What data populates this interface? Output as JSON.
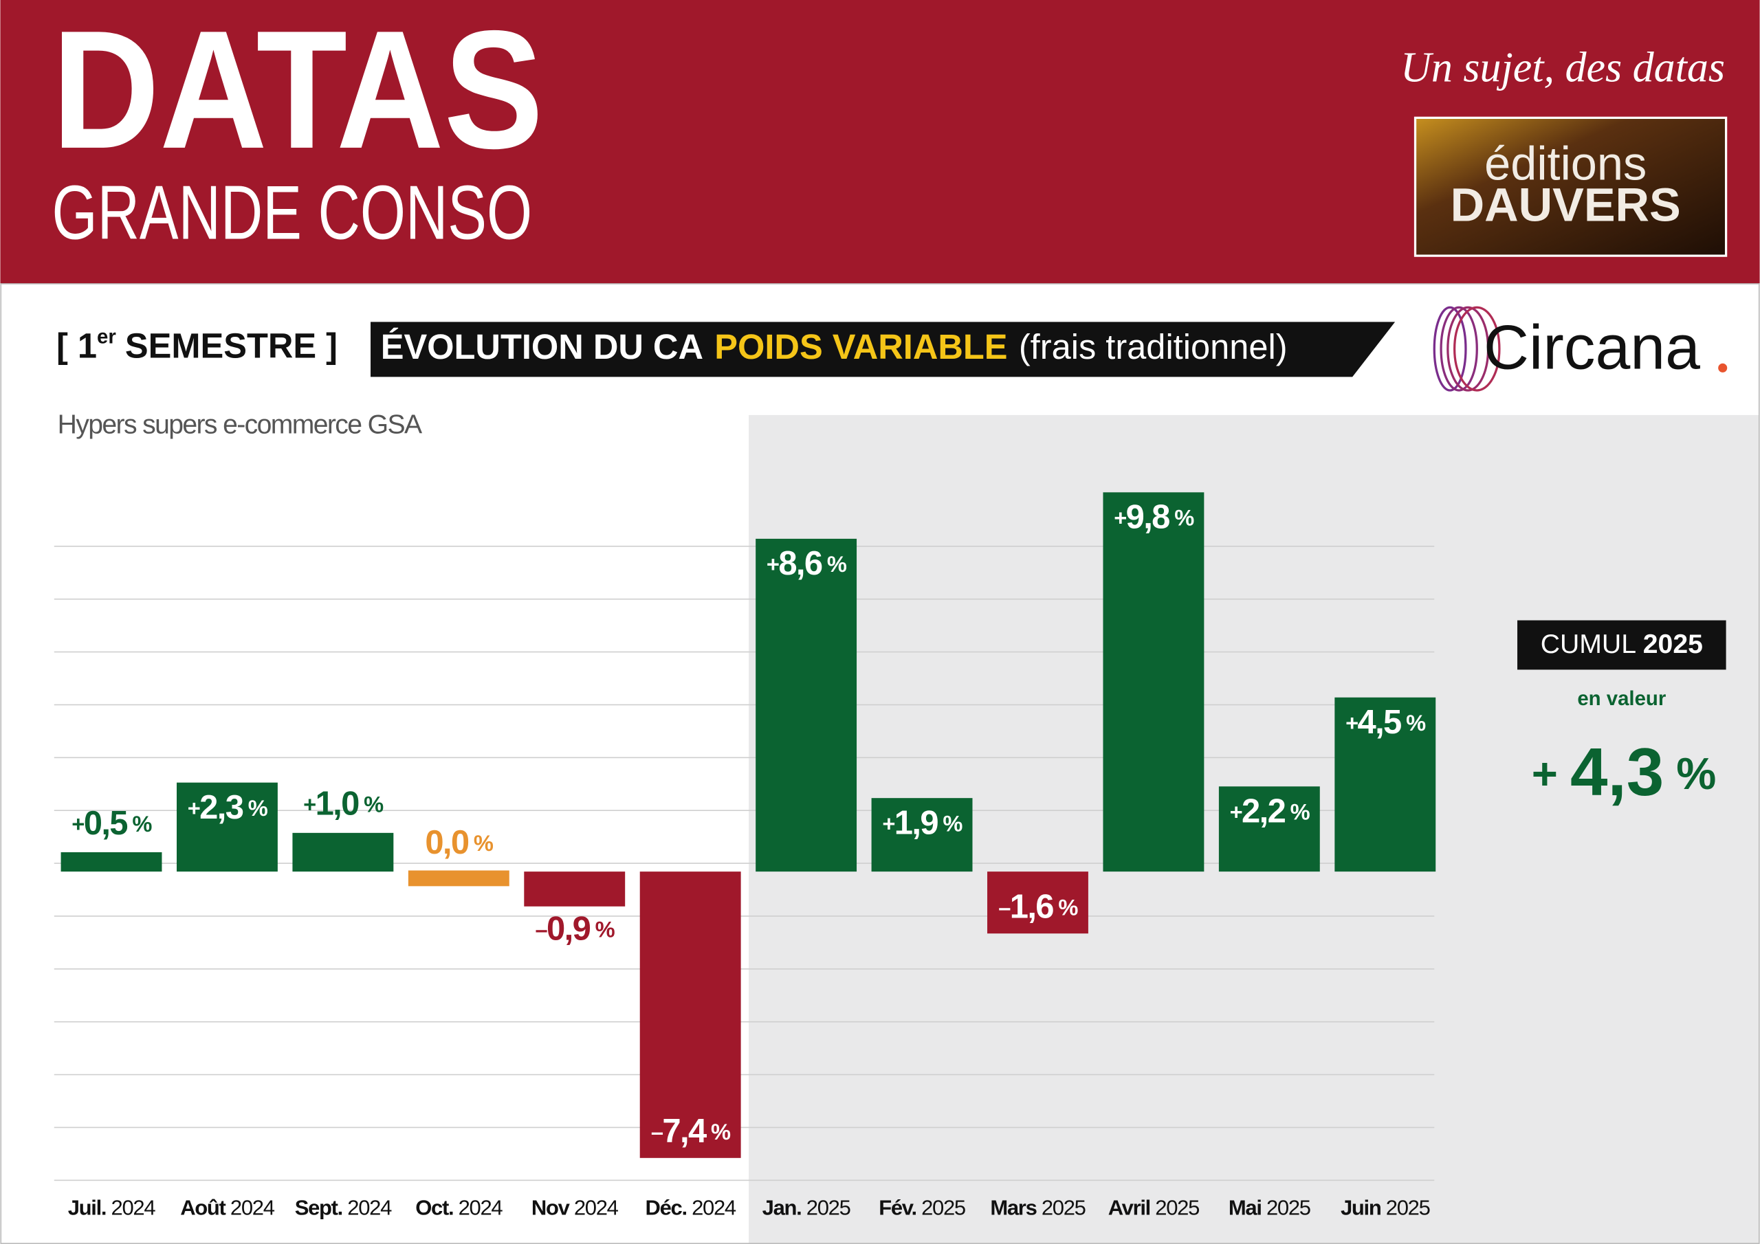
{
  "header": {
    "title": "DATAS",
    "subtitle": "GRANDE CONSO",
    "tagline": "Un sujet, des datas",
    "logo": [
      "éditions",
      "DAUVERS"
    ]
  },
  "section": {
    "period_prefix": "[ 1",
    "period_sup": "er",
    "period_suffix": "SEMESTRE ]",
    "title": "ÉVOLUTION DU CA",
    "highlight": "POIDS VARIABLE",
    "note": "(frais traditionnel)",
    "source": "Circana"
  },
  "chart_data": {
    "type": "bar",
    "subtitle": "Hypers supers e-commerce GSA",
    "categories": [
      "Juil. 2024",
      "Août 2024",
      "Sept. 2024",
      "Oct. 2024",
      "Nov 2024",
      "Déc. 2024",
      "Jan. 2025",
      "Fév. 2025",
      "Mars 2025",
      "Avril 2025",
      "Mai 2025",
      "Juin 2025"
    ],
    "values": [
      0.5,
      2.3,
      1.0,
      0.0,
      -0.9,
      -7.4,
      8.6,
      1.9,
      -1.6,
      9.8,
      2.2,
      4.5
    ],
    "value_labels": [
      "+0,5 %",
      "+2,3 %",
      "+1,0 %",
      "0,0 %",
      "–0,9 %",
      "–7,4 %",
      "+8,6 %",
      "+1,9 %",
      "–1,6 %",
      "+9,8 %",
      "+2,2 %",
      "+4,5 %"
    ],
    "colors": [
      "#0b6331",
      "#0b6331",
      "#0b6331",
      "#e8922e",
      "#a0182b",
      "#a0182b",
      "#0b6331",
      "#0b6331",
      "#a0182b",
      "#0b6331",
      "#0b6331",
      "#0b6331"
    ],
    "ylim": [
      -8,
      10
    ],
    "cumul": {
      "label": "CUMUL",
      "year": "2025",
      "note": "en valeur",
      "value": 4.3,
      "value_label": "+ 4,3 %"
    }
  }
}
